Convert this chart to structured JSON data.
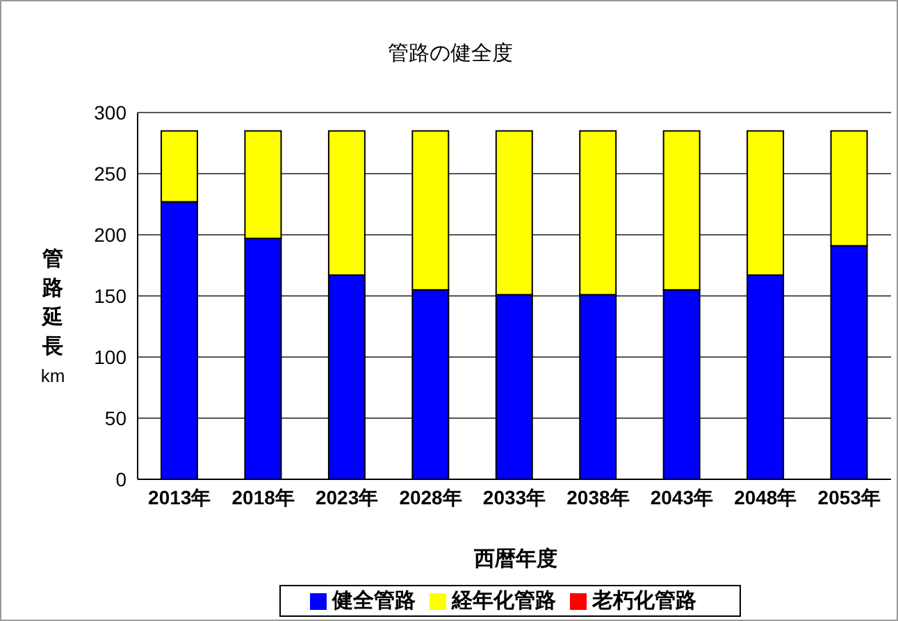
{
  "chart_data": {
    "type": "bar",
    "title": "管路の健全度",
    "xlabel": "西暦年度",
    "ylabel": "管路延長km",
    "categories": [
      "2013年",
      "2018年",
      "2023年",
      "2028年",
      "2033年",
      "2038年",
      "2043年",
      "2048年",
      "2053年"
    ],
    "stacked": true,
    "series": [
      {
        "name": "健全管路",
        "color": "#0000ff",
        "values": [
          227,
          197,
          167,
          155,
          151,
          151,
          155,
          167,
          191
        ]
      },
      {
        "name": "経年化管路",
        "color": "#ffff00",
        "values": [
          58,
          88,
          118,
          130,
          134,
          134,
          130,
          118,
          94
        ]
      },
      {
        "name": "老朽化管路",
        "color": "#ff0000",
        "values": [
          0,
          0,
          0,
          0,
          0,
          0,
          0,
          0,
          0
        ]
      }
    ],
    "ylim": [
      0,
      300
    ],
    "yticks": [
      0,
      50,
      100,
      150,
      200,
      250,
      300
    ],
    "grid": "y",
    "legend": "bottom"
  }
}
